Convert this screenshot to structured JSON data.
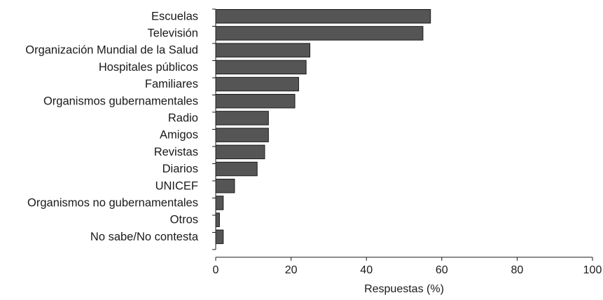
{
  "chart_data": {
    "type": "bar",
    "orientation": "horizontal",
    "categories": [
      "Escuelas",
      "Televisión",
      "Organización Mundial de la Salud",
      "Hospitales públicos",
      "Familiares",
      "Organismos gubernamentales",
      "Radio",
      "Amigos",
      "Revistas",
      "Diarios",
      "UNICEF",
      "Organismos no gubernamentales",
      "Otros",
      "No sabe/No contesta"
    ],
    "values": [
      57,
      55,
      25,
      24,
      22,
      21,
      14,
      14,
      13,
      11,
      5,
      2,
      1,
      2
    ],
    "xlabel": "Respuestas (%)",
    "ylabel": "",
    "xlim": [
      0,
      100
    ],
    "xticks": [
      0,
      20,
      40,
      60,
      80,
      100
    ],
    "grid": false,
    "colors": {
      "bar_fill": "#555555",
      "bar_stroke": "#1a1a1a",
      "axis": "#1a1a1a"
    }
  }
}
